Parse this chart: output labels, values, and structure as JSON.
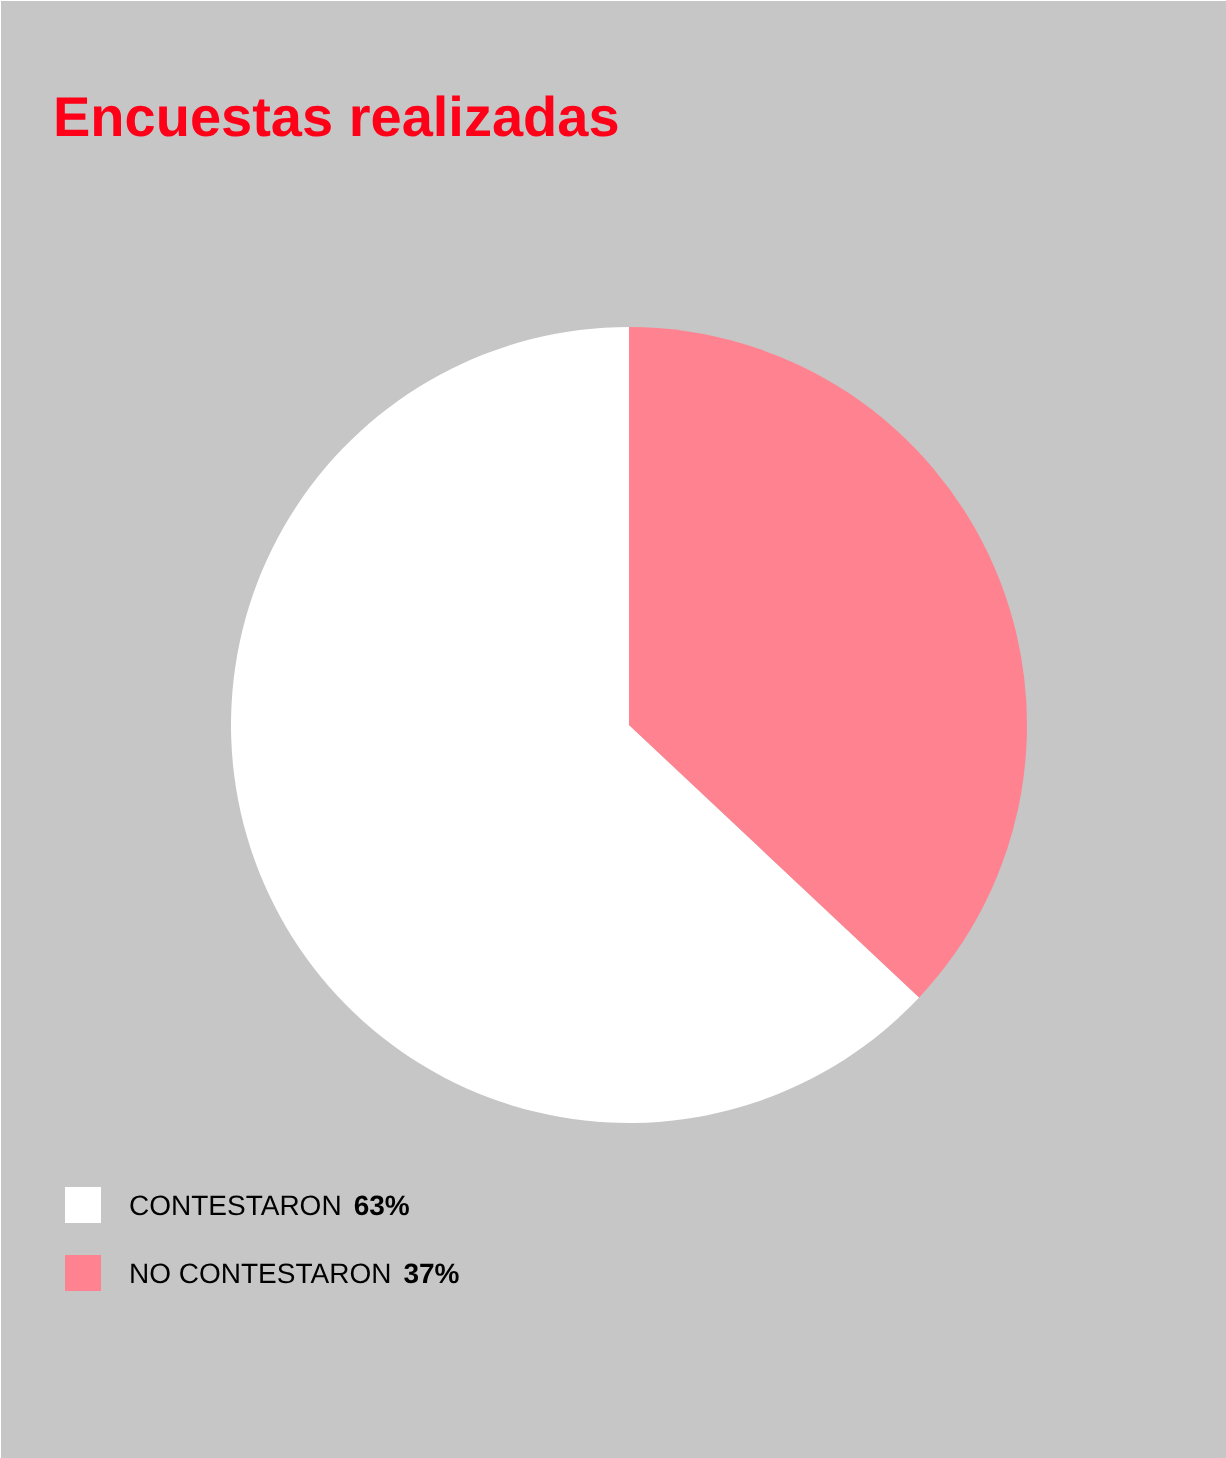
{
  "chart_data": {
    "type": "pie",
    "title": "Encuestas realizadas",
    "categories": [
      "CONTESTARON",
      "NO CONTESTARON"
    ],
    "values": [
      63,
      37
    ],
    "colors": [
      "#ffffff",
      "#ff8290"
    ],
    "value_labels": [
      "63%",
      "37%"
    ],
    "legend": "bottom left"
  }
}
